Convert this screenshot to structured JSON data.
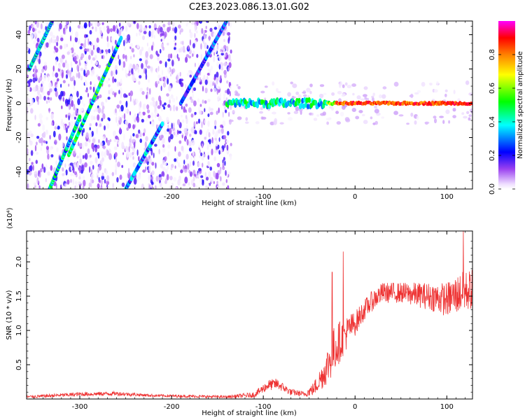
{
  "title": "C2E3.2023.086.13.01.G02",
  "chart_data": [
    {
      "type": "heatmap",
      "xlabel": "Height of straight line (km)",
      "ylabel": "Frequency (Hz)",
      "xlim": [
        -358,
        128
      ],
      "ylim": [
        -50,
        48
      ],
      "xticks": [
        -300,
        -200,
        -100,
        0,
        100
      ],
      "yticks": [
        -40,
        -20,
        0,
        20,
        40
      ],
      "colorbar": {
        "label": "Normalized spectral amplitude",
        "range": [
          0,
          1
        ],
        "ticks": [
          "0.0",
          "0.2",
          "0.4",
          "0.6",
          "0.8"
        ],
        "tick_values": [
          0.0,
          0.2,
          0.4,
          0.6,
          0.8
        ],
        "colors": [
          "#ffffff",
          "#e6ccff",
          "#8a2be2",
          "#0000ff",
          "#00ffff",
          "#00ff00",
          "#ffff00",
          "#ff8000",
          "#ff0000",
          "#ff00ff"
        ]
      },
      "features": {
        "diagonal_streaks": [
          {
            "x": [
              -355,
              -330
            ],
            "y": [
              20,
              48
            ],
            "amp": 0.5
          },
          {
            "x": [
              -333,
              -300
            ],
            "y": [
              -50,
              -8
            ],
            "amp": 0.55
          },
          {
            "x": [
              -312,
              -255
            ],
            "y": [
              -30,
              38
            ],
            "amp": 0.6
          },
          {
            "x": [
              -250,
              -210
            ],
            "y": [
              -50,
              -12
            ],
            "amp": 0.45
          },
          {
            "x": [
              -190,
              -140
            ],
            "y": [
              0,
              48
            ],
            "amp": 0.35
          }
        ],
        "carrier_line": {
          "y": 0,
          "x_start": -140,
          "x_end": 128,
          "amp_max": 0.95
        }
      }
    },
    {
      "type": "line",
      "xlabel": "Height of straight line (km)",
      "ylabel": "SNR (10 * v/v)",
      "multiplier": "(x10⁴)",
      "xlim": [
        -358,
        128
      ],
      "ylim": [
        0,
        2.45
      ],
      "xticks": [
        -300,
        -200,
        -100,
        0,
        100
      ],
      "yticks": [
        0.5,
        1.0,
        1.5,
        2.0
      ],
      "ytick_labels": [
        "0.5",
        "1.0",
        "1.5",
        "2.0"
      ],
      "color": "#ee3333",
      "envelope": {
        "x": [
          -358,
          -300,
          -260,
          -220,
          -180,
          -140,
          -110,
          -95,
          -85,
          -70,
          -55,
          -45,
          -35,
          -28,
          -22,
          -16,
          -10,
          -5,
          0,
          10,
          20,
          30,
          50,
          80,
          100,
          115,
          128
        ],
        "mean": [
          0.03,
          0.07,
          0.08,
          0.05,
          0.04,
          0.03,
          0.06,
          0.2,
          0.22,
          0.1,
          0.07,
          0.15,
          0.35,
          0.55,
          0.75,
          0.85,
          0.95,
          1.05,
          1.1,
          1.3,
          1.45,
          1.55,
          1.55,
          1.5,
          1.45,
          1.55,
          1.6
        ],
        "noise": [
          0.02,
          0.03,
          0.03,
          0.02,
          0.02,
          0.02,
          0.04,
          0.08,
          0.08,
          0.05,
          0.04,
          0.1,
          0.2,
          0.3,
          0.35,
          0.3,
          0.25,
          0.2,
          0.18,
          0.15,
          0.15,
          0.15,
          0.15,
          0.2,
          0.25,
          0.3,
          0.3
        ]
      },
      "spikes": [
        {
          "x": -25,
          "y": 1.85
        },
        {
          "x": -13,
          "y": 2.15
        },
        {
          "x": 118,
          "y": 2.45
        }
      ]
    }
  ]
}
